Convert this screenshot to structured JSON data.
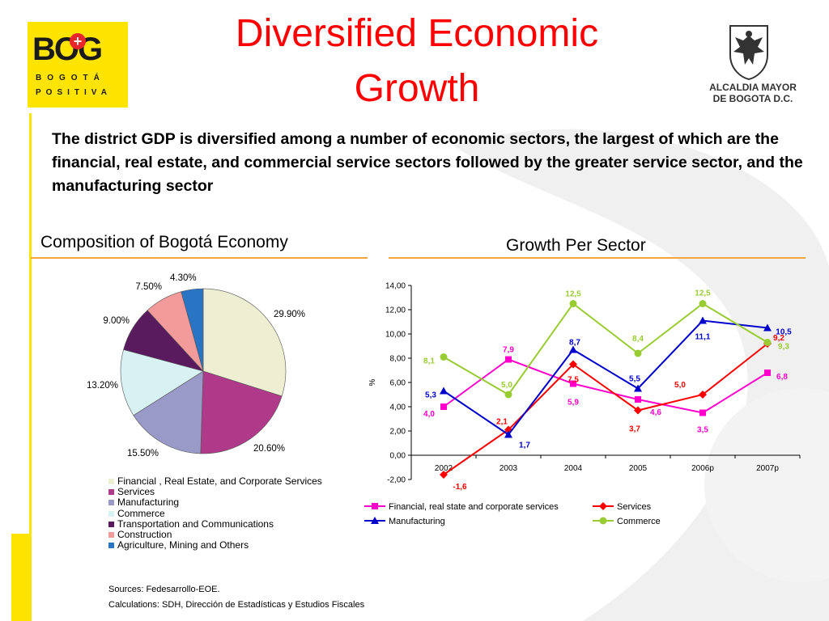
{
  "header": {
    "title_line1": "Diversified Economic",
    "title_line2": "Growth",
    "logo_left": {
      "text": "BOG",
      "plus": "+",
      "line1": "BOGOTÁ",
      "line2": "POSITIVA"
    },
    "logo_right": {
      "line1": "ALCALDIA MAYOR",
      "line2": "DE BOGOTA D.C."
    }
  },
  "intro_text": "The district GDP is diversified among a number of economic sectors, the largest of which are the financial, real estate, and commercial service sectors followed by the greater service sector, and the manufacturing sector",
  "left_panel": {
    "title": "Composition of Bogotá Economy",
    "sources": "Sources: Fedesarrollo-EOE.",
    "calculations": "Calculations: SDH, Dirección de Estadísticas y Estudios Fiscales"
  },
  "right_panel": {
    "title": "Growth Per Sector"
  },
  "colors": {
    "title_red": "#ff0000",
    "accent_yellow": "#ffe400",
    "rule_orange": "#f4a63b"
  },
  "chart_data": [
    {
      "type": "pie",
      "title": "Composition of Bogotá Economy",
      "slices": [
        {
          "label": "Financial , Real Estate, and Corporate Services",
          "value": 29.9,
          "value_label": "29.90%",
          "color": "#eeeed2"
        },
        {
          "label": "Services",
          "value": 20.6,
          "value_label": "20.60%",
          "color": "#b03a8a"
        },
        {
          "label": "Manufacturing",
          "value": 15.5,
          "value_label": "15.50%",
          "color": "#9a9ac8"
        },
        {
          "label": "Commerce",
          "value": 13.2,
          "value_label": "13.20%",
          "color": "#d8f2f4"
        },
        {
          "label": "Transportation and Communications",
          "value": 9.0,
          "value_label": "9.00%",
          "color": "#5a1a5e"
        },
        {
          "label": "Construction",
          "value": 7.5,
          "value_label": "7.50%",
          "color": "#f39a9a"
        },
        {
          "label": "Agriculture, Mining and Others",
          "value": 4.3,
          "value_label": "4.30%",
          "color": "#2a74c4"
        }
      ],
      "legend_placement": "bottom"
    },
    {
      "type": "line",
      "title": "Growth Per Sector",
      "ylabel": "%",
      "categories": [
        "2002",
        "2003",
        "2004",
        "2005",
        "2006p",
        "2007p"
      ],
      "ylim": [
        -2,
        14
      ],
      "yticks": [
        "14,00",
        "12,00",
        "10,00",
        "8,00",
        "6,00",
        "4,00",
        "2,00",
        "0,00",
        "-2,00"
      ],
      "grid": false,
      "legend_placement": "bottom",
      "series": [
        {
          "name": "Financial, real state and corporate services",
          "color": "#ff00cc",
          "marker": "square",
          "values": [
            4.0,
            7.9,
            5.9,
            4.6,
            3.5,
            6.8
          ],
          "labels": [
            "4,0",
            "7,9",
            "5,9",
            "4,6",
            "3,5",
            "6,8"
          ]
        },
        {
          "name": "Services",
          "color": "#ff0000",
          "marker": "diamond",
          "values": [
            -1.6,
            2.1,
            7.5,
            3.7,
            5.0,
            9.2
          ],
          "labels": [
            "-1,6",
            "2,1",
            "7,5",
            "3,7",
            "5,0",
            "9,2"
          ]
        },
        {
          "name": "Manufacturing",
          "color": "#0000cc",
          "marker": "triangle",
          "values": [
            5.3,
            1.7,
            8.7,
            5.5,
            11.1,
            10.5
          ],
          "labels": [
            "5,3",
            "1,7",
            "8,7",
            "5,5",
            "11,1",
            "10,5"
          ]
        },
        {
          "name": "Commerce",
          "color": "#99cc33",
          "marker": "circle",
          "values": [
            8.1,
            5.0,
            12.5,
            8.4,
            12.5,
            9.3
          ],
          "labels": [
            "8,1",
            "5,0",
            "12,5",
            "8,4",
            "12,5",
            "9,3"
          ]
        }
      ]
    }
  ]
}
